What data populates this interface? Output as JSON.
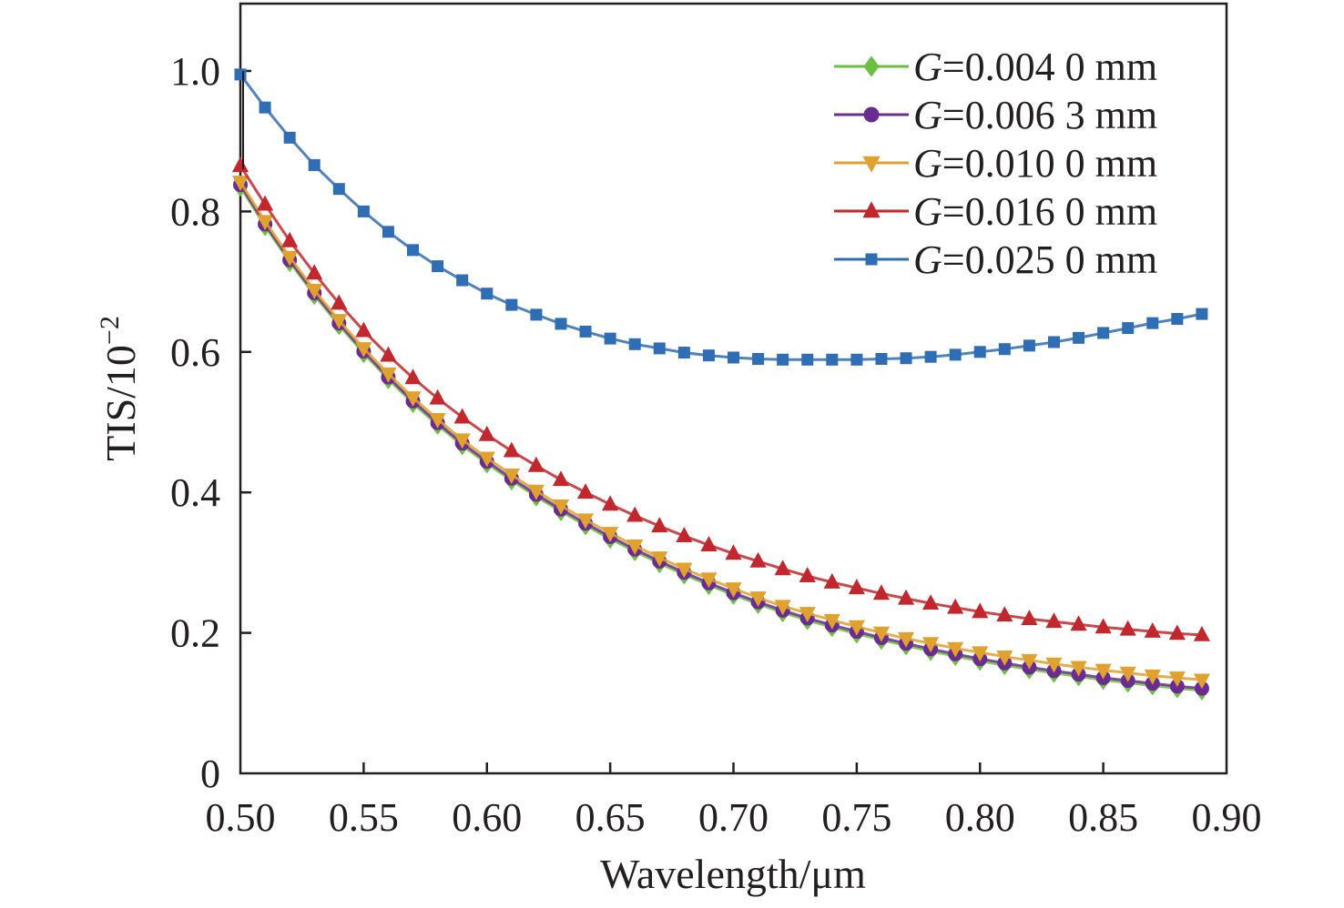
{
  "chart_data": {
    "type": "line",
    "title": "",
    "xlabel": "Wavelength/μm",
    "ylabel_base": "TIS/10",
    "ylabel_exp": "−2",
    "xlim": [
      0.5,
      0.9
    ],
    "ylim": [
      0,
      1.1
    ],
    "xticks": [
      "0.50",
      "0.55",
      "0.60",
      "0.65",
      "0.70",
      "0.75",
      "0.80",
      "0.85",
      "0.90"
    ],
    "yticks": [
      "0",
      "0.2",
      "0.4",
      "0.6",
      "0.8",
      "1.0"
    ],
    "x": [
      0.5,
      0.51,
      0.52,
      0.53,
      0.54,
      0.55,
      0.56,
      0.57,
      0.58,
      0.59,
      0.6,
      0.61,
      0.62,
      0.63,
      0.64,
      0.65,
      0.66,
      0.67,
      0.68,
      0.69,
      0.7,
      0.71,
      0.72,
      0.73,
      0.74,
      0.75,
      0.76,
      0.77,
      0.78,
      0.79,
      0.8,
      0.81,
      0.82,
      0.83,
      0.84,
      0.85,
      0.86,
      0.87,
      0.88,
      0.89
    ],
    "legend_position": "top-right",
    "series": [
      {
        "name": "0.004 0 mm",
        "color": "#6cbf3f",
        "marker": "diamond",
        "values": [
          0.835,
          0.779,
          0.728,
          0.681,
          0.638,
          0.598,
          0.561,
          0.527,
          0.496,
          0.467,
          0.441,
          0.417,
          0.394,
          0.373,
          0.353,
          0.334,
          0.316,
          0.299,
          0.283,
          0.268,
          0.254,
          0.241,
          0.229,
          0.218,
          0.208,
          0.199,
          0.19,
          0.182,
          0.174,
          0.167,
          0.16,
          0.154,
          0.148,
          0.143,
          0.138,
          0.133,
          0.129,
          0.125,
          0.121,
          0.118
        ]
      },
      {
        "name": "0.006 3 mm",
        "color": "#6a2c91",
        "marker": "circle",
        "values": [
          0.838,
          0.782,
          0.731,
          0.684,
          0.641,
          0.601,
          0.564,
          0.53,
          0.499,
          0.47,
          0.444,
          0.42,
          0.397,
          0.376,
          0.356,
          0.337,
          0.319,
          0.302,
          0.286,
          0.271,
          0.257,
          0.244,
          0.232,
          0.221,
          0.211,
          0.202,
          0.193,
          0.185,
          0.177,
          0.17,
          0.163,
          0.157,
          0.151,
          0.146,
          0.141,
          0.136,
          0.132,
          0.128,
          0.124,
          0.121
        ]
      },
      {
        "name": "0.010 0 mm",
        "color": "#e1a12f",
        "marker": "triangle-down",
        "values": [
          0.842,
          0.786,
          0.735,
          0.688,
          0.645,
          0.605,
          0.569,
          0.535,
          0.504,
          0.475,
          0.449,
          0.425,
          0.402,
          0.381,
          0.361,
          0.342,
          0.324,
          0.307,
          0.291,
          0.277,
          0.263,
          0.25,
          0.238,
          0.228,
          0.218,
          0.209,
          0.2,
          0.192,
          0.185,
          0.178,
          0.172,
          0.166,
          0.161,
          0.156,
          0.151,
          0.147,
          0.143,
          0.139,
          0.136,
          0.133
        ]
      },
      {
        "name": "0.016 0 mm",
        "color": "#c1272d",
        "marker": "triangle-up",
        "values": [
          0.865,
          0.81,
          0.758,
          0.712,
          0.669,
          0.63,
          0.595,
          0.563,
          0.534,
          0.507,
          0.482,
          0.459,
          0.438,
          0.418,
          0.4,
          0.383,
          0.367,
          0.352,
          0.338,
          0.325,
          0.313,
          0.302,
          0.291,
          0.281,
          0.272,
          0.264,
          0.256,
          0.249,
          0.242,
          0.236,
          0.23,
          0.225,
          0.22,
          0.216,
          0.212,
          0.208,
          0.205,
          0.202,
          0.199,
          0.197
        ]
      },
      {
        "name": "0.025 0 mm",
        "color": "#2f6db5",
        "marker": "square",
        "values": [
          0.995,
          0.948,
          0.905,
          0.866,
          0.832,
          0.8,
          0.771,
          0.745,
          0.722,
          0.702,
          0.683,
          0.667,
          0.653,
          0.64,
          0.629,
          0.619,
          0.611,
          0.605,
          0.599,
          0.595,
          0.592,
          0.59,
          0.589,
          0.589,
          0.589,
          0.589,
          0.59,
          0.591,
          0.593,
          0.596,
          0.6,
          0.604,
          0.609,
          0.614,
          0.62,
          0.627,
          0.634,
          0.641,
          0.647,
          0.654
        ]
      }
    ]
  }
}
